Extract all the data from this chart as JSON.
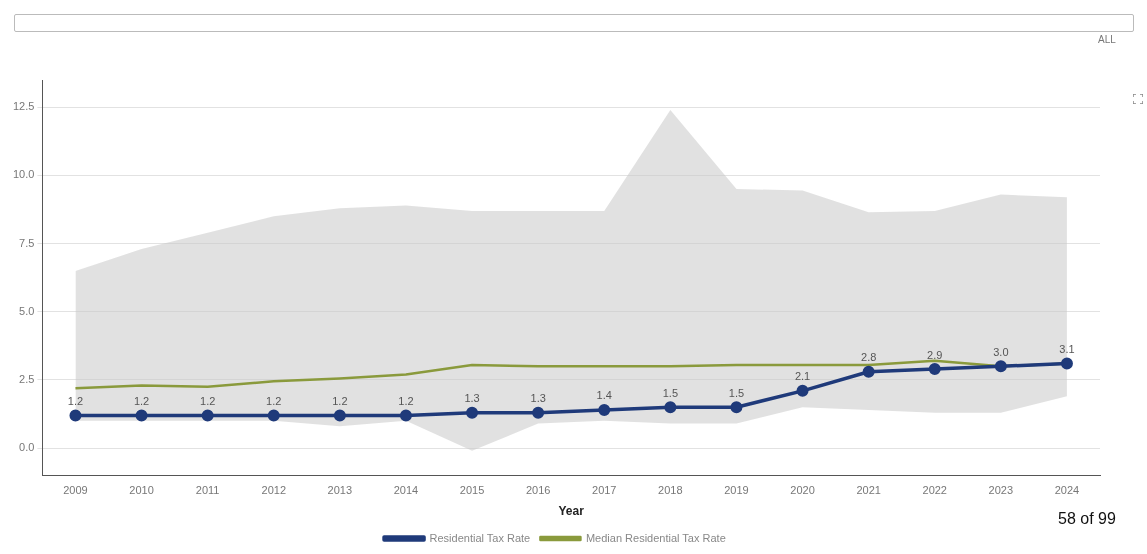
{
  "chart_data": {
    "type": "line",
    "xlabel": "Year",
    "categories": [
      "2009",
      "2010",
      "2011",
      "2012",
      "2013",
      "2014",
      "2015",
      "2016",
      "2017",
      "2018",
      "2019",
      "2020",
      "2021",
      "2022",
      "2023",
      "2024"
    ],
    "series": [
      {
        "name": "Residential Tax Rate",
        "color": "#1f3a7a",
        "marker": "circle",
        "values": [
          1.2,
          1.2,
          1.2,
          1.2,
          1.2,
          1.2,
          1.3,
          1.3,
          1.4,
          1.5,
          1.5,
          2.1,
          2.8,
          2.9,
          3.0,
          3.1
        ],
        "value_labels": [
          "1.2",
          "1.2",
          "1.2",
          "1.2",
          "1.2",
          "1.2",
          "1.3",
          "1.3",
          "1.4",
          "1.5",
          "1.5",
          "2.1",
          "2.8",
          "2.9",
          "3.0",
          "3.1"
        ]
      },
      {
        "name": "Median Residential Tax Rate",
        "color": "#8a9a3c",
        "marker": "none",
        "values": [
          2.2,
          2.3,
          2.25,
          2.45,
          2.55,
          2.7,
          3.05,
          3.0,
          3.0,
          3.0,
          3.05,
          3.05,
          3.05,
          3.2,
          3.0,
          3.1
        ],
        "lower": [
          1.0,
          1.0,
          1.0,
          1.0,
          0.8,
          1.0,
          -0.1,
          0.9,
          1.0,
          0.9,
          0.9,
          1.5,
          1.4,
          1.3,
          1.3,
          1.9
        ],
        "upper": [
          6.5,
          7.3,
          7.9,
          8.5,
          8.8,
          8.9,
          8.7,
          8.7,
          8.7,
          12.4,
          9.5,
          9.45,
          8.65,
          8.7,
          9.3,
          9.2
        ]
      }
    ],
    "ylim": [
      -1,
      13.5
    ],
    "yticks": [
      {
        "value": 0,
        "label": "0.0"
      },
      {
        "value": 2.5,
        "label": "2.5"
      },
      {
        "value": 5,
        "label": "5.0"
      },
      {
        "value": 7.5,
        "label": "7.5"
      },
      {
        "value": 10,
        "label": "10.0"
      },
      {
        "value": 12.5,
        "label": "12.5"
      }
    ],
    "grid": "y",
    "legend": "bottom",
    "line_style": "solid",
    "annotations": [
      "ALL",
      "58 of 99"
    ]
  }
}
